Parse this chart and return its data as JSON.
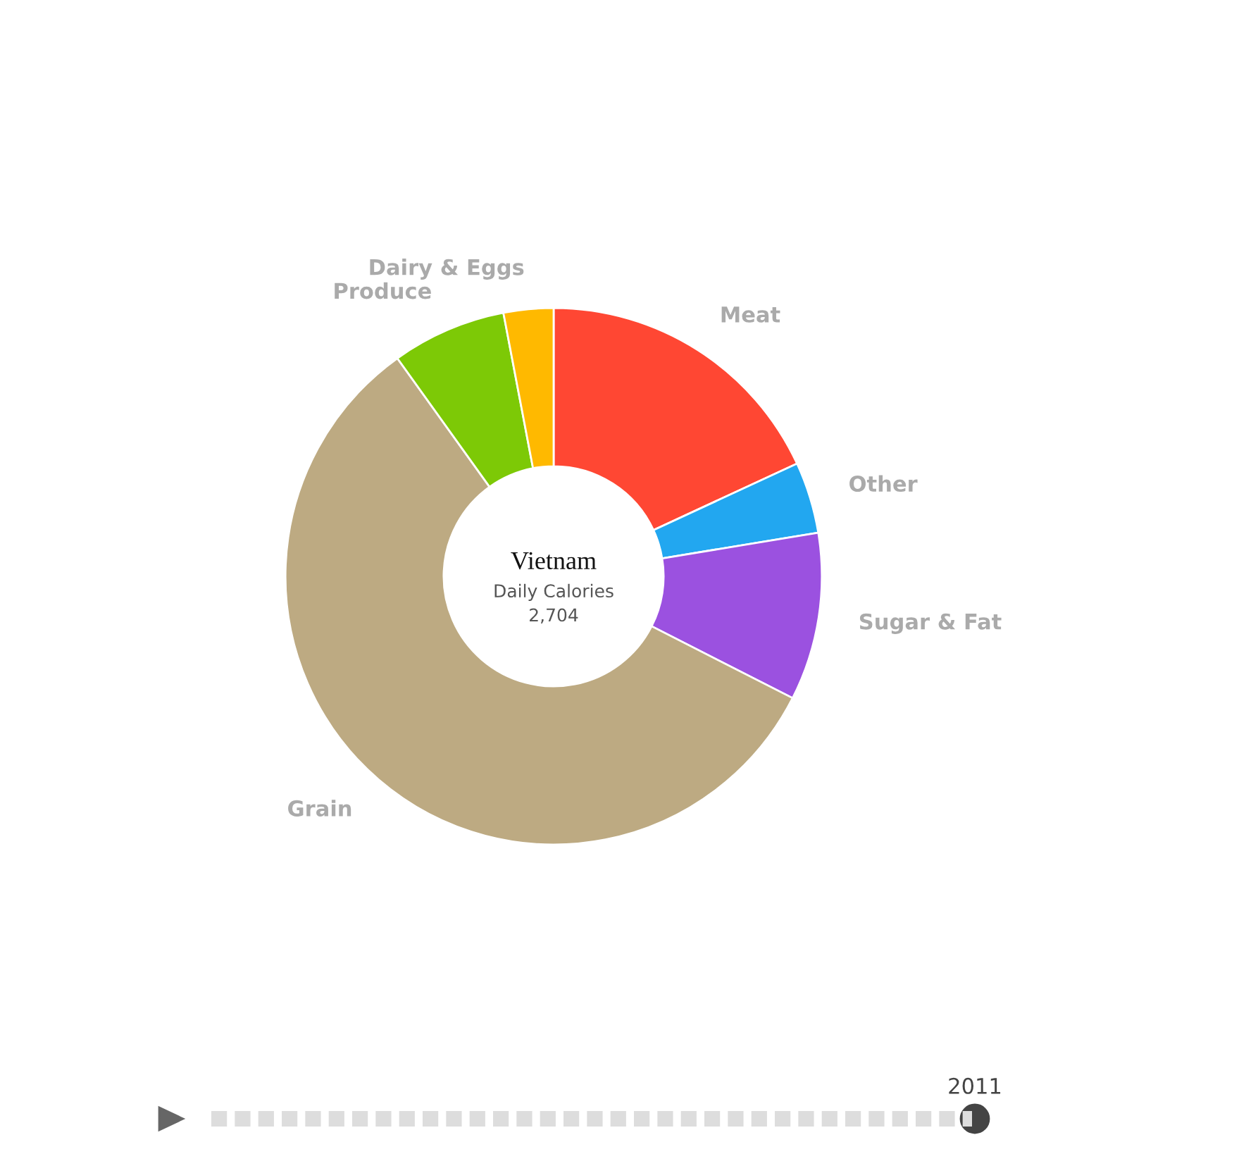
{
  "chart_data": {
    "type": "donut",
    "title": "Vietnam",
    "subtitle": "Daily Calories",
    "categories": [
      "Meat",
      "Other",
      "Sugar & Fat",
      "Grain",
      "Produce",
      "Dairy & Eggs"
    ],
    "values": [
      18.1,
      4.3,
      10.1,
      57.6,
      6.9,
      3.0
    ],
    "colors": [
      "#ff4733",
      "#22a7f0",
      "#9b51e0",
      "#bdaa82",
      "#7dc906",
      "#ffb900"
    ],
    "annotations": [
      "2,704",
      "2011"
    ]
  }
}
